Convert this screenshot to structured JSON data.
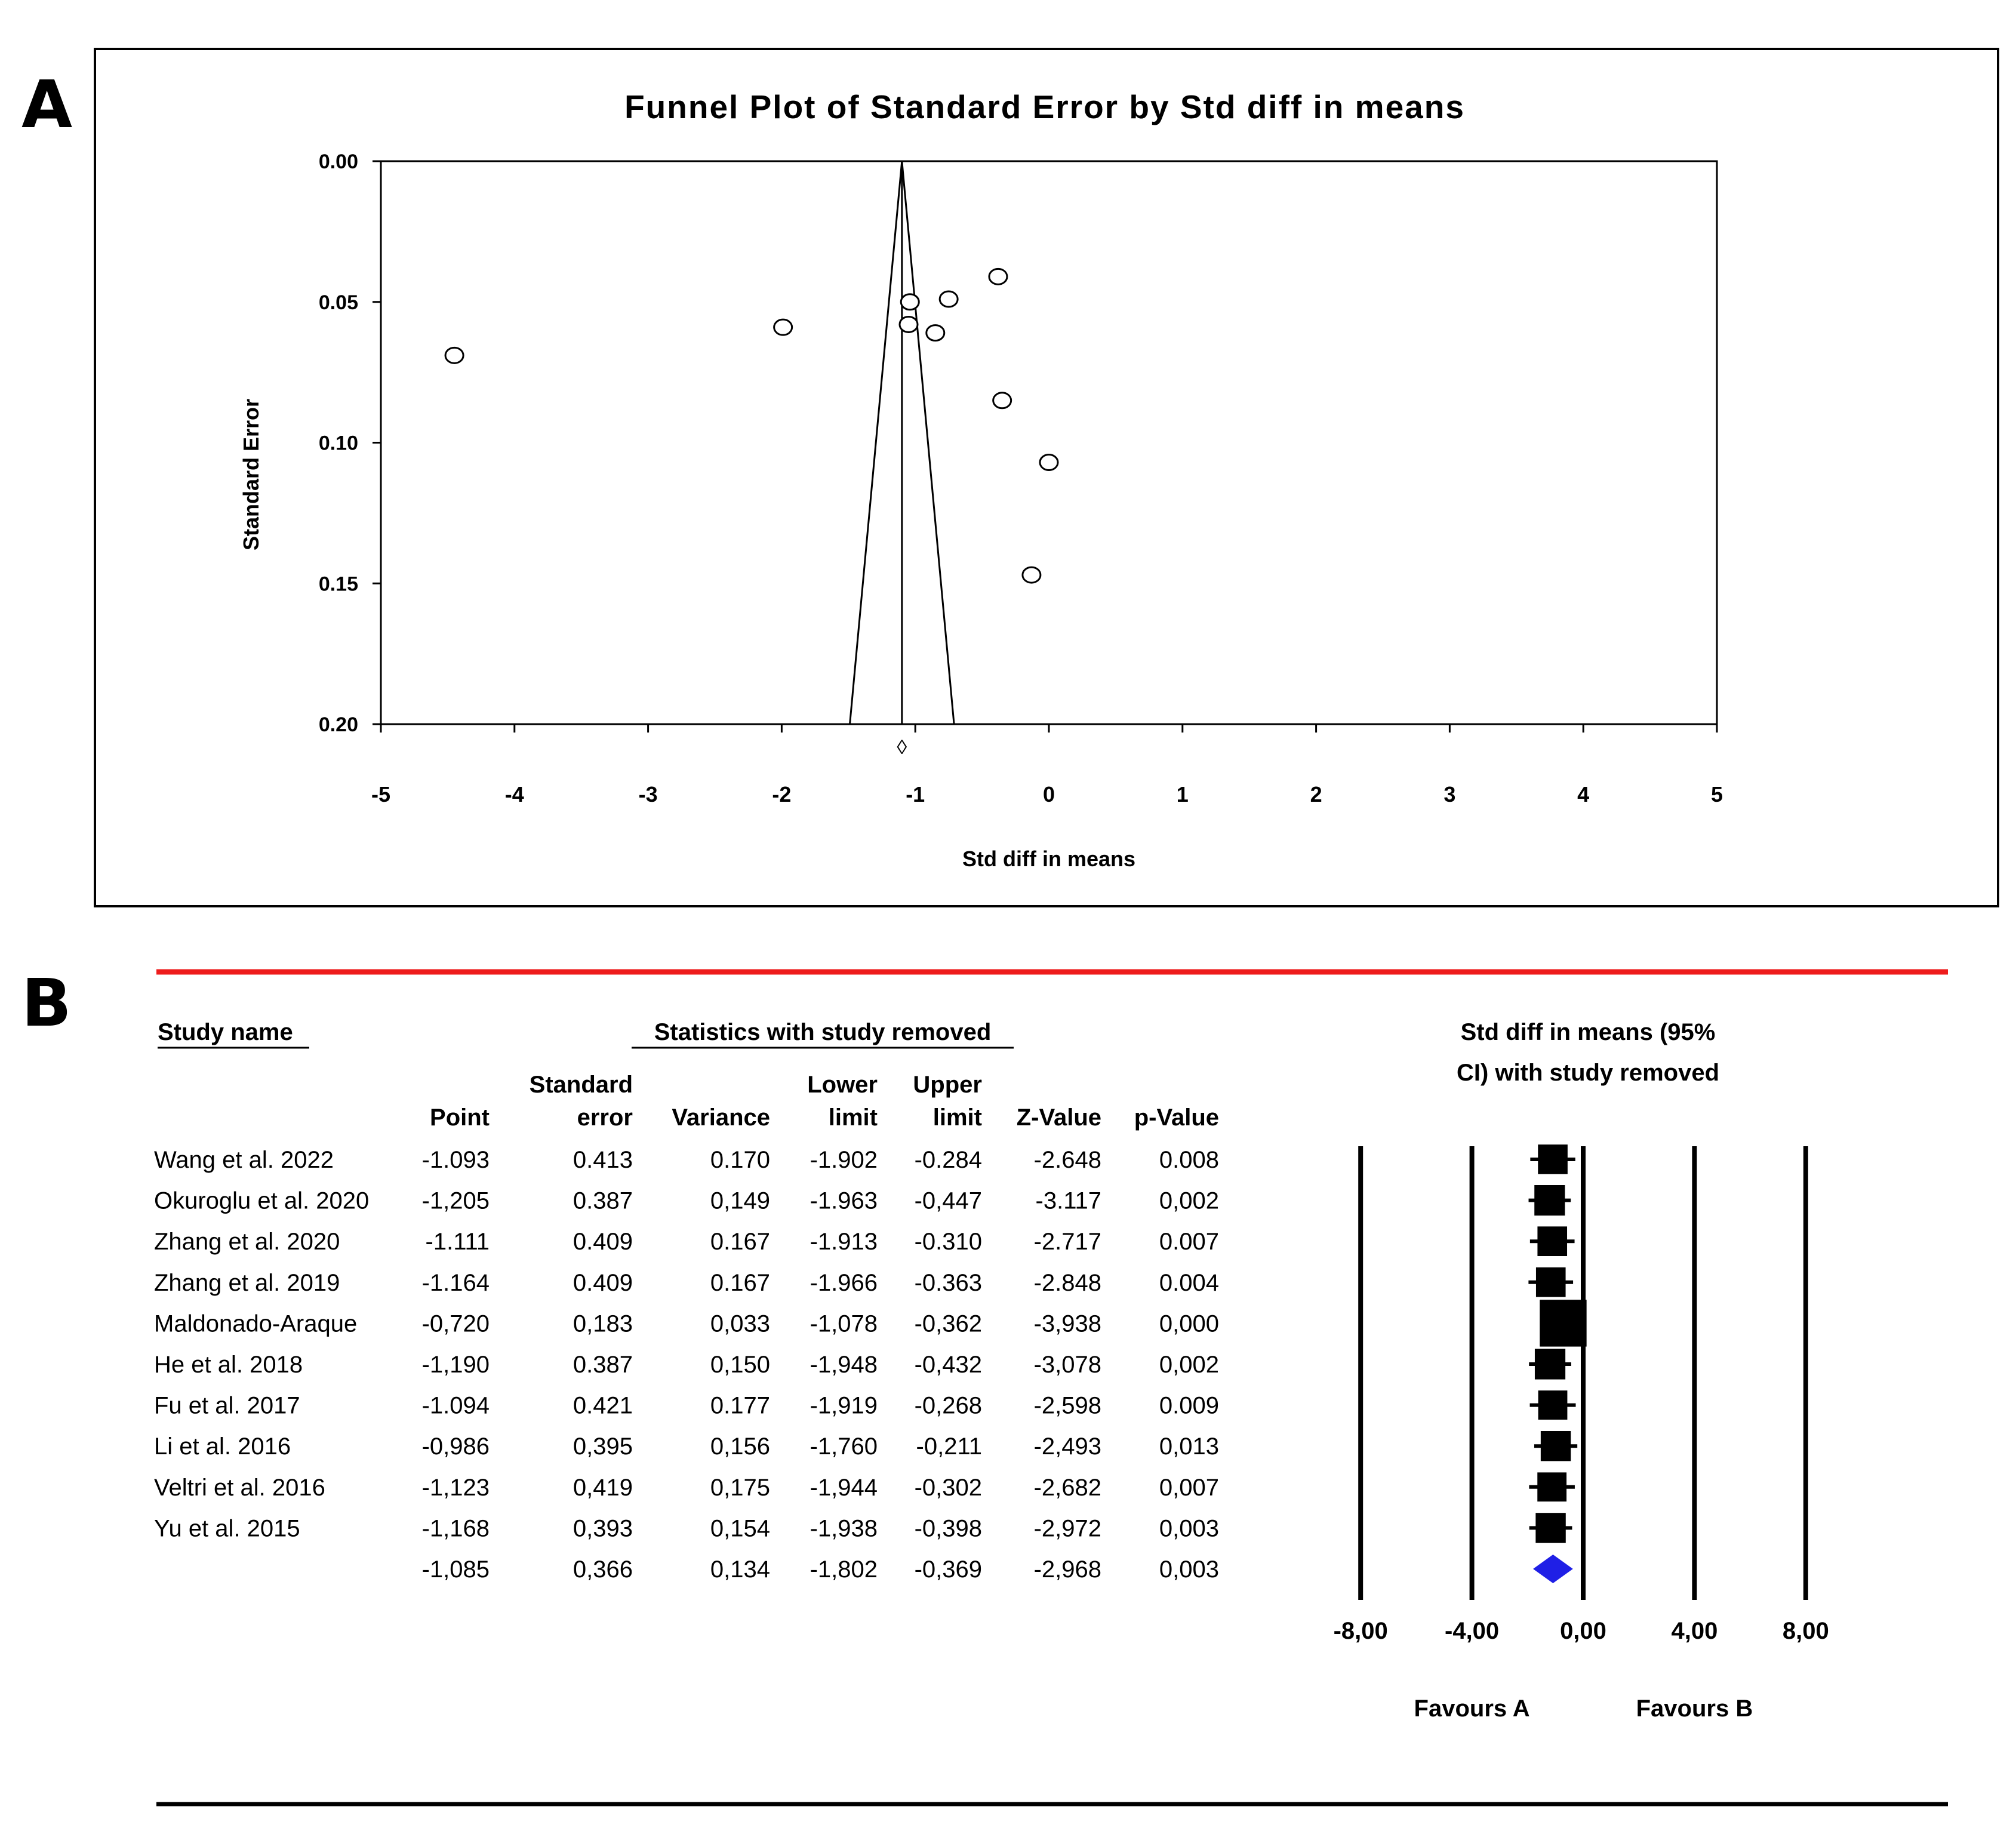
{
  "panels": {
    "a_label": "A",
    "b_label": "B"
  },
  "chart_data": [
    {
      "type": "scatter",
      "title": "Funnel Plot of Standard Error by Std diff in means",
      "xlabel": "Std diff in means",
      "ylabel": "Standard Error",
      "xlim": [
        -5,
        5
      ],
      "ylim": [
        0,
        0.2
      ],
      "y_inverted": true,
      "x_ticks": [
        "-5",
        "-4",
        "-3",
        "-2",
        "-1",
        "0",
        "1",
        "2",
        "3",
        "4",
        "5"
      ],
      "y_ticks": [
        "0.00",
        "0.05",
        "0.10",
        "0.15",
        "0.20"
      ],
      "points": [
        {
          "x": -4.45,
          "y": 0.069
        },
        {
          "x": -1.99,
          "y": 0.059
        },
        {
          "x": -1.04,
          "y": 0.05
        },
        {
          "x": -1.05,
          "y": 0.058
        },
        {
          "x": -0.85,
          "y": 0.061
        },
        {
          "x": -0.75,
          "y": 0.049
        },
        {
          "x": -0.38,
          "y": 0.041
        },
        {
          "x": -0.35,
          "y": 0.085
        },
        {
          "x": 0.0,
          "y": 0.107
        },
        {
          "x": -0.13,
          "y": 0.147
        }
      ],
      "pooled_effect": -1.1,
      "funnel_bottom": [
        -1.49,
        -0.71
      ],
      "summary_marker_symbol": "◊"
    },
    {
      "type": "table",
      "header_study": "Study name",
      "header_stats": "Statistics with study removed",
      "header_plot_line1": "Std diff in means (95%",
      "header_plot_line2": "CI) with study removed",
      "columns": [
        {
          "line1": "",
          "line2": "Point"
        },
        {
          "line1": "Standard",
          "line2": "error"
        },
        {
          "line1": "",
          "line2": "Variance"
        },
        {
          "line1": "Lower",
          "line2": "limit"
        },
        {
          "line1": "Upper",
          "line2": "limit"
        },
        {
          "line1": "",
          "line2": "Z-Value"
        },
        {
          "line1": "",
          "line2": "p-Value"
        }
      ],
      "rows": [
        {
          "study": "Wang et al. 2022",
          "point": "-1.093",
          "se": "0.413",
          "variance": "0.170",
          "lower": "-1.902",
          "upper": "-0.284",
          "z": "-2.648",
          "p": "0.008",
          "est": -1.093,
          "lo": -1.902,
          "hi": -0.284,
          "box": 0.62
        },
        {
          "study": "Okuroglu et al. 2020",
          "point": "-1,205",
          "se": "0.387",
          "variance": "0,149",
          "lower": "-1.963",
          "upper": "-0,447",
          "z": "-3.117",
          "p": "0,002",
          "est": -1.205,
          "lo": -1.963,
          "hi": -0.447,
          "box": 0.64
        },
        {
          "study": "Zhang et al. 2020",
          "point": "-1.111",
          "se": "0.409",
          "variance": "0.167",
          "lower": "-1.913",
          "upper": "-0.310",
          "z": "-2.717",
          "p": "0.007",
          "est": -1.111,
          "lo": -1.913,
          "hi": -0.31,
          "box": 0.62
        },
        {
          "study": "Zhang et al. 2019",
          "point": "-1.164",
          "se": "0.409",
          "variance": "0.167",
          "lower": "-1.966",
          "upper": "-0.363",
          "z": "-2.848",
          "p": "0.004",
          "est": -1.164,
          "lo": -1.966,
          "hi": -0.363,
          "box": 0.62
        },
        {
          "study": "Maldonado-Araque",
          "point": "-0,720",
          "se": "0,183",
          "variance": "0,033",
          "lower": "-1,078",
          "upper": "-0,362",
          "z": "-3,938",
          "p": "0,000",
          "est": -0.72,
          "lo": -1.078,
          "hi": -0.362,
          "box": 0.98
        },
        {
          "study": "He et al. 2018",
          "point": "-1,190",
          "se": "0.387",
          "variance": "0,150",
          "lower": "-1,948",
          "upper": "-0,432",
          "z": "-3,078",
          "p": "0,002",
          "est": -1.19,
          "lo": -1.948,
          "hi": -0.432,
          "box": 0.64
        },
        {
          "study": "Fu et al. 2017",
          "point": "-1.094",
          "se": "0.421",
          "variance": "0.177",
          "lower": "-1,919",
          "upper": "-0,268",
          "z": "-2,598",
          "p": "0.009",
          "est": -1.094,
          "lo": -1.919,
          "hi": -0.268,
          "box": 0.61
        },
        {
          "study": "Li et al. 2016",
          "point": "-0,986",
          "se": "0,395",
          "variance": "0,156",
          "lower": "-1,760",
          "upper": "-0,211",
          "z": "-2,493",
          "p": "0,013",
          "est": -0.986,
          "lo": -1.76,
          "hi": -0.211,
          "box": 0.63
        },
        {
          "study": "Veltri et al. 2016",
          "point": "-1,123",
          "se": "0,419",
          "variance": "0,175",
          "lower": "-1,944",
          "upper": "-0,302",
          "z": "-2,682",
          "p": "0,007",
          "est": -1.123,
          "lo": -1.944,
          "hi": -0.302,
          "box": 0.61
        },
        {
          "study": "Yu et al. 2015",
          "point": "-1,168",
          "se": "0,393",
          "variance": "0,154",
          "lower": "-1,938",
          "upper": "-0,398",
          "z": "-2,972",
          "p": "0,003",
          "est": -1.168,
          "lo": -1.938,
          "hi": -0.398,
          "box": 0.63
        }
      ],
      "summary": {
        "study": "",
        "point": "-1,085",
        "se": "0,366",
        "variance": "0,134",
        "lower": "-1,802",
        "upper": "-0,369",
        "z": "-2,968",
        "p": "0,003",
        "est": -1.085,
        "lo": -1.802,
        "hi": -0.369
      },
      "forest_xlim": [
        -10,
        10
      ],
      "forest_ticks": [
        {
          "value": -8,
          "label": "-8,00"
        },
        {
          "value": -4,
          "label": "-4,00"
        },
        {
          "value": 0,
          "label": "0,00"
        },
        {
          "value": 4,
          "label": "4,00"
        },
        {
          "value": 8,
          "label": "8,00"
        }
      ],
      "favours_a": "Favours A",
      "favours_b": "Favours B",
      "colors": {
        "accent_rule": "#ee1c1c",
        "diamond": "#1f1fe6",
        "marks": "#000000"
      }
    }
  ]
}
